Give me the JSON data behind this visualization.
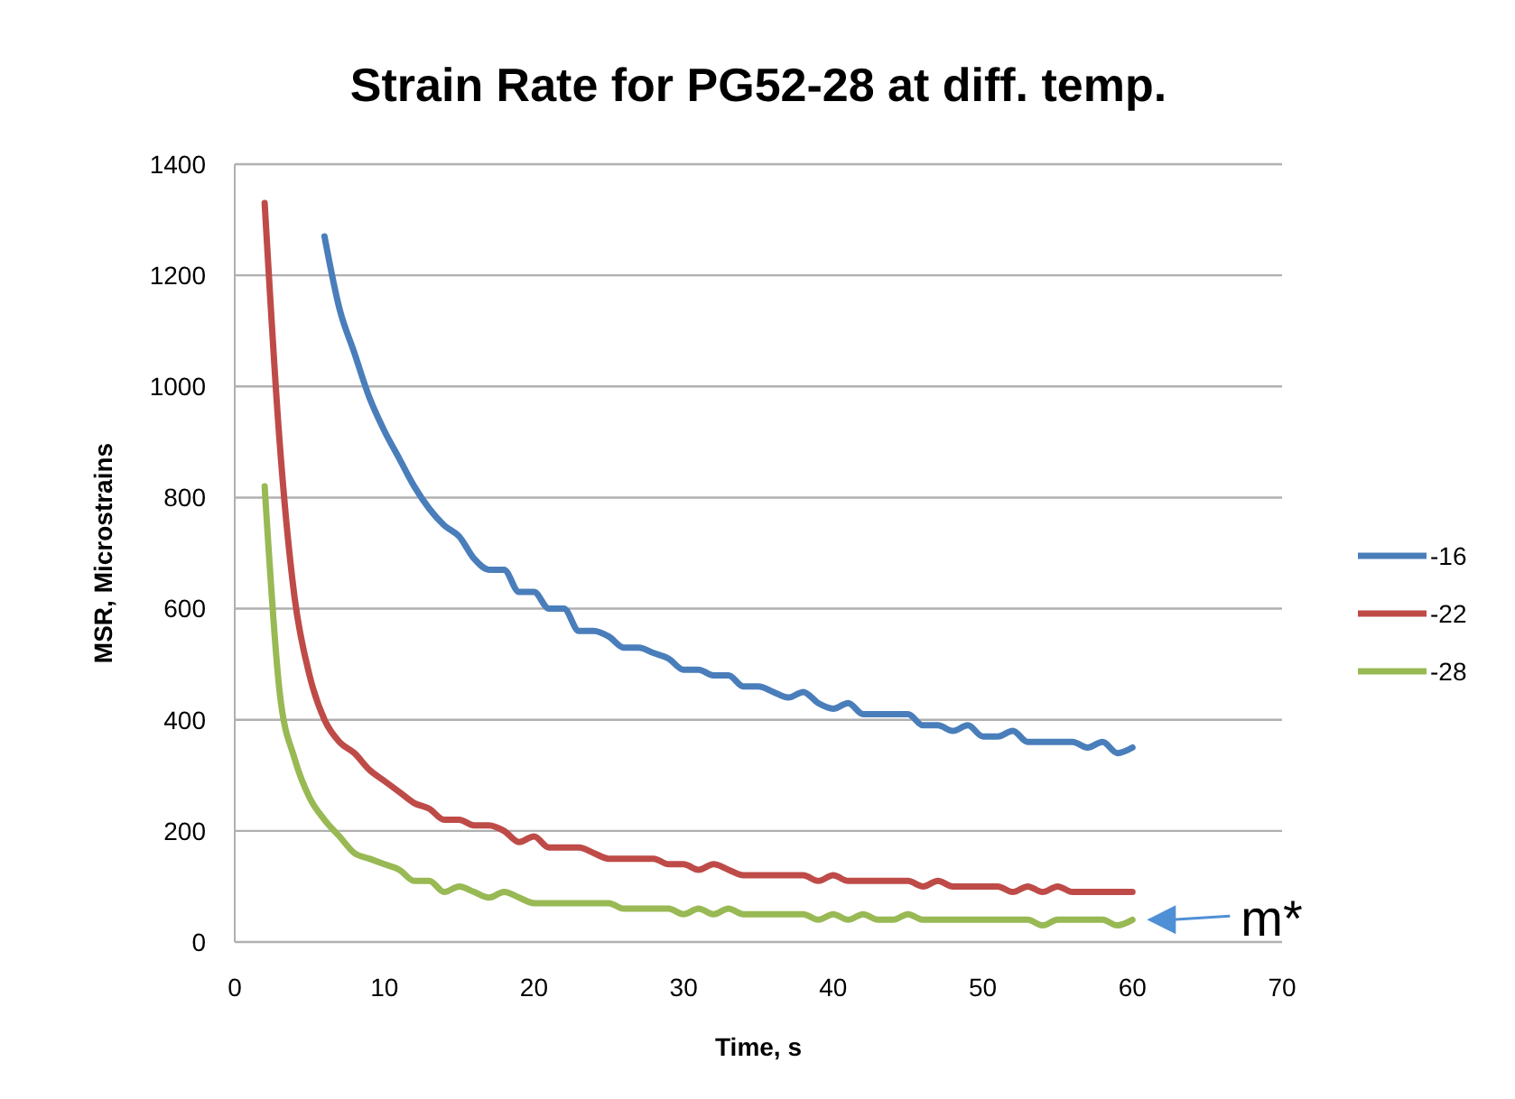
{
  "chart_data": {
    "type": "line",
    "title": "Strain Rate for PG52-28 at diff. temp.",
    "xlabel": "Time, s",
    "ylabel": "MSR, Microstrains",
    "xlim": [
      0,
      70
    ],
    "xticks": [
      0,
      10,
      20,
      30,
      40,
      50,
      60,
      70
    ],
    "ylim": [
      0,
      1400
    ],
    "yticks": [
      0,
      200,
      400,
      600,
      800,
      1000,
      1200,
      1400
    ],
    "grid": "y",
    "legend": "right",
    "marker": "none",
    "line_style": "solid",
    "series": [
      {
        "name": "-16",
        "color": "#4a7ebb",
        "x": [
          6,
          7,
          8,
          9,
          10,
          11,
          12,
          13,
          14,
          15,
          16,
          17,
          18,
          19,
          20,
          21,
          22,
          23,
          24,
          25,
          26,
          27,
          28,
          29,
          30,
          31,
          32,
          33,
          34,
          35,
          36,
          37,
          38,
          39,
          40,
          41,
          42,
          43,
          44,
          45,
          46,
          47,
          48,
          49,
          50,
          51,
          52,
          53,
          54,
          55,
          56,
          57,
          58,
          59,
          60
        ],
        "values": [
          1270,
          1140,
          1060,
          980,
          920,
          870,
          820,
          780,
          750,
          730,
          690,
          670,
          670,
          630,
          630,
          600,
          600,
          560,
          560,
          550,
          530,
          530,
          520,
          510,
          490,
          490,
          480,
          480,
          460,
          460,
          450,
          440,
          450,
          430,
          420,
          430,
          410,
          410,
          410,
          410,
          390,
          390,
          380,
          390,
          370,
          370,
          380,
          360,
          360,
          360,
          360,
          350,
          360,
          340,
          350
        ]
      },
      {
        "name": "-22",
        "color": "#be4b48",
        "x": [
          2,
          3,
          4,
          5,
          6,
          7,
          8,
          9,
          10,
          11,
          12,
          13,
          14,
          15,
          16,
          17,
          18,
          19,
          20,
          21,
          22,
          23,
          24,
          25,
          26,
          27,
          28,
          29,
          30,
          31,
          32,
          33,
          34,
          35,
          36,
          37,
          38,
          39,
          40,
          41,
          42,
          43,
          44,
          45,
          46,
          47,
          48,
          49,
          50,
          51,
          52,
          53,
          54,
          55,
          56,
          57,
          58,
          59,
          60
        ],
        "values": [
          1330,
          900,
          620,
          480,
          400,
          360,
          340,
          310,
          290,
          270,
          250,
          240,
          220,
          220,
          210,
          210,
          200,
          180,
          190,
          170,
          170,
          170,
          160,
          150,
          150,
          150,
          150,
          140,
          140,
          130,
          140,
          130,
          120,
          120,
          120,
          120,
          120,
          110,
          120,
          110,
          110,
          110,
          110,
          110,
          100,
          110,
          100,
          100,
          100,
          100,
          90,
          100,
          90,
          100,
          90,
          90,
          90,
          90,
          90
        ]
      },
      {
        "name": "-28",
        "color": "#98b954",
        "x": [
          2,
          3,
          4,
          5,
          6,
          7,
          8,
          9,
          10,
          11,
          12,
          13,
          14,
          15,
          16,
          17,
          18,
          19,
          20,
          21,
          22,
          23,
          24,
          25,
          26,
          27,
          28,
          29,
          30,
          31,
          32,
          33,
          34,
          35,
          36,
          37,
          38,
          39,
          40,
          41,
          42,
          43,
          44,
          45,
          46,
          47,
          48,
          49,
          50,
          51,
          52,
          53,
          54,
          55,
          56,
          57,
          58,
          59,
          60
        ],
        "values": [
          820,
          450,
          330,
          260,
          220,
          190,
          160,
          150,
          140,
          130,
          110,
          110,
          90,
          100,
          90,
          80,
          90,
          80,
          70,
          70,
          70,
          70,
          70,
          70,
          60,
          60,
          60,
          60,
          50,
          60,
          50,
          60,
          50,
          50,
          50,
          50,
          50,
          40,
          50,
          40,
          50,
          40,
          40,
          50,
          40,
          40,
          40,
          40,
          40,
          40,
          40,
          40,
          30,
          40,
          40,
          40,
          40,
          30,
          40
        ]
      }
    ],
    "annotations": [
      {
        "text": "m*",
        "x": 60,
        "y": 40
      }
    ]
  }
}
